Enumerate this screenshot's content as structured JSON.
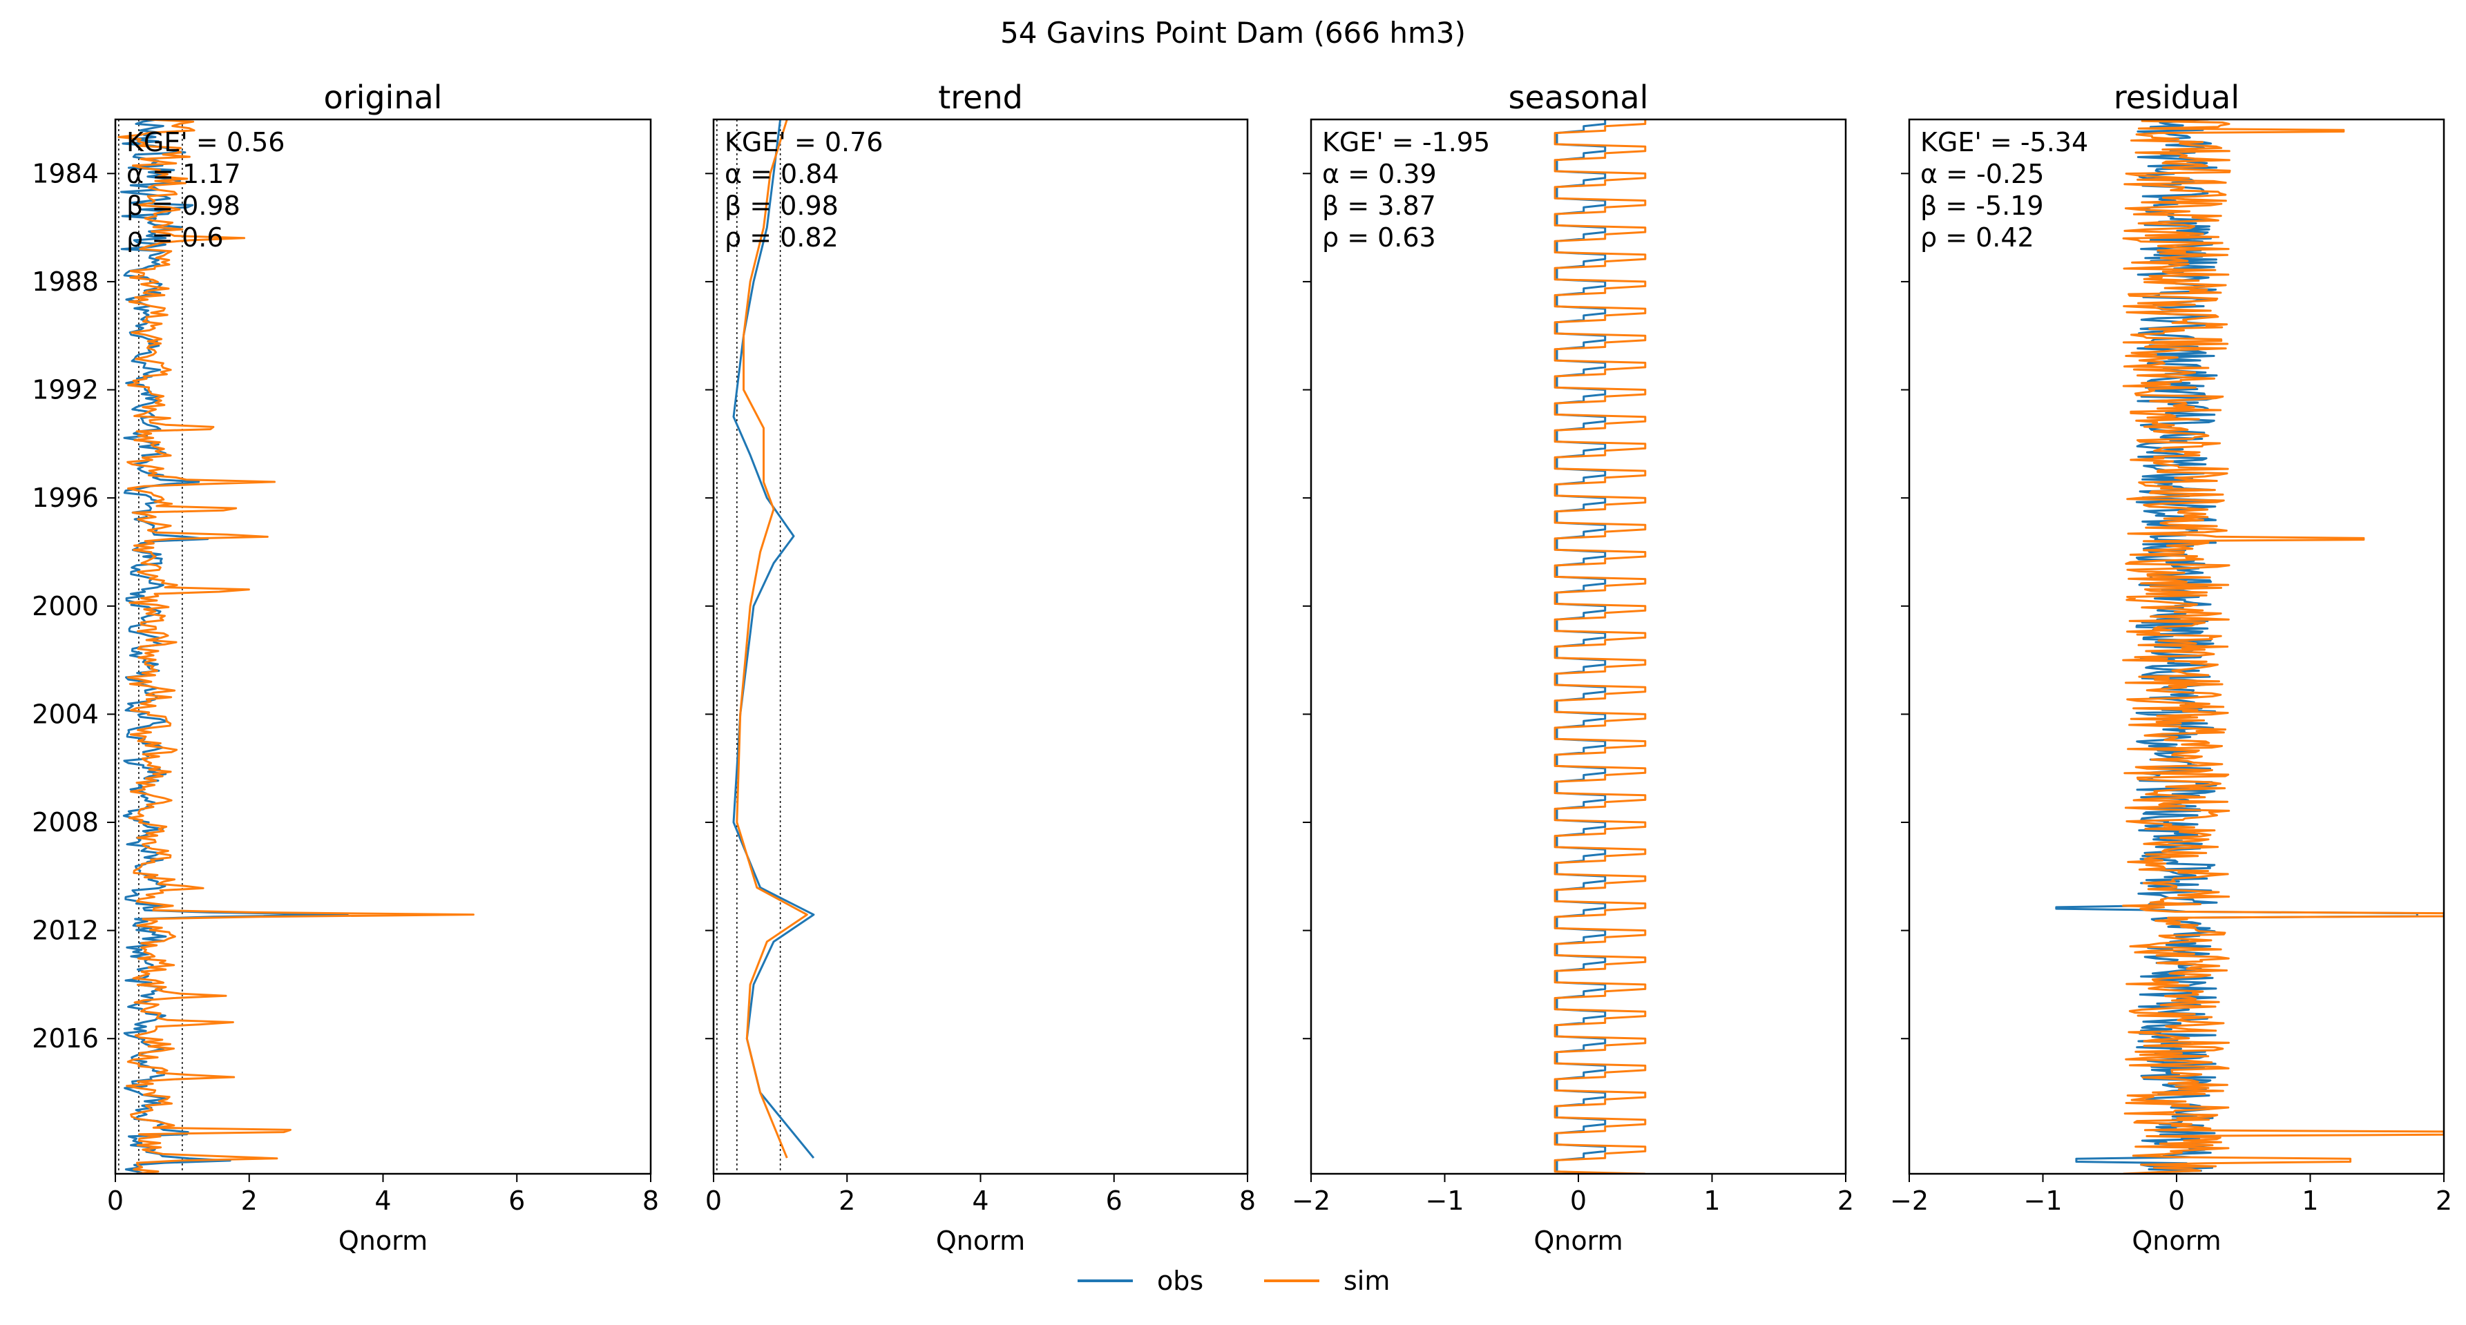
{
  "figure": {
    "suptitle": "54  Gavins Point Dam (666 hm3)",
    "legend": {
      "placement": "bottom-center",
      "entries": [
        {
          "label": "obs",
          "color": "#1f77b4"
        },
        {
          "label": "sim",
          "color": "#ff7f0e"
        }
      ]
    }
  },
  "chart_data": [
    {
      "type": "line",
      "title": "original",
      "xlabel": "Qnorm",
      "ylabel": "",
      "xlim": [
        0,
        8
      ],
      "ylim": [
        "1982-01-01",
        "2021-01-01"
      ],
      "xticks": [
        "0",
        "2",
        "4",
        "6",
        "8"
      ],
      "yticks": [
        "1984",
        "1988",
        "1992",
        "1996",
        "2000",
        "2004",
        "2008",
        "2012",
        "2016"
      ],
      "stats": [
        "KGE' = 0.56",
        "α = 1.17",
        "β = 0.98",
        "ρ = 0.6"
      ],
      "reference_lines": [
        0.05,
        0.35,
        1.0
      ],
      "series": [
        {
          "name": "obs",
          "color": "#1f77b4",
          "baseline": 0.45,
          "amplitude": 0.18,
          "points": [
            {
              "date": "1995-06-01",
              "value": 1.3
            },
            {
              "date": "1997-07-01",
              "value": 1.6
            },
            {
              "date": "2011-06-01",
              "value": 3.5
            },
            {
              "date": "2019-07-01",
              "value": 1.4
            },
            {
              "date": "2020-07-01",
              "value": 1.9
            }
          ]
        },
        {
          "name": "sim",
          "color": "#ff7f0e",
          "baseline": 0.55,
          "amplitude": 0.25,
          "points": [
            {
              "date": "1986-06-01",
              "value": 1.9
            },
            {
              "date": "1993-06-01",
              "value": 1.9
            },
            {
              "date": "1995-06-01",
              "value": 2.5
            },
            {
              "date": "1996-06-01",
              "value": 2.3
            },
            {
              "date": "1997-06-01",
              "value": 2.7
            },
            {
              "date": "1999-06-01",
              "value": 2.4
            },
            {
              "date": "2010-06-01",
              "value": 1.5
            },
            {
              "date": "2011-06-01",
              "value": 5.4
            },
            {
              "date": "2014-06-01",
              "value": 1.7
            },
            {
              "date": "2015-06-01",
              "value": 2.0
            },
            {
              "date": "2017-06-01",
              "value": 1.9
            },
            {
              "date": "2019-06-01",
              "value": 3.6
            },
            {
              "date": "2020-06-01",
              "value": 2.7
            }
          ]
        }
      ]
    },
    {
      "type": "line",
      "title": "trend",
      "xlabel": "Qnorm",
      "ylabel": "",
      "xlim": [
        0,
        8
      ],
      "ylim": [
        "1982-01-01",
        "2021-01-01"
      ],
      "xticks": [
        "0",
        "2",
        "4",
        "6",
        "8"
      ],
      "stats": [
        "KGE' = 0.76",
        "α = 0.84",
        "β = 0.98",
        "ρ = 0.82"
      ],
      "reference_lines": [
        0.05,
        0.35,
        1.0
      ],
      "series": [
        {
          "name": "obs",
          "color": "#1f77b4",
          "points": [
            {
              "date": "1982-01-01",
              "value": 1.0
            },
            {
              "date": "1984-01-01",
              "value": 0.9
            },
            {
              "date": "1986-01-01",
              "value": 0.8
            },
            {
              "date": "1988-01-01",
              "value": 0.6
            },
            {
              "date": "1990-01-01",
              "value": 0.45
            },
            {
              "date": "1992-01-01",
              "value": 0.35
            },
            {
              "date": "1993-01-01",
              "value": 0.3
            },
            {
              "date": "1994-06-01",
              "value": 0.55
            },
            {
              "date": "1996-01-01",
              "value": 0.8
            },
            {
              "date": "1997-06-01",
              "value": 1.2
            },
            {
              "date": "1998-06-01",
              "value": 0.9
            },
            {
              "date": "2000-01-01",
              "value": 0.6
            },
            {
              "date": "2004-01-01",
              "value": 0.4
            },
            {
              "date": "2008-01-01",
              "value": 0.3
            },
            {
              "date": "2010-06-01",
              "value": 0.7
            },
            {
              "date": "2011-06-01",
              "value": 1.5
            },
            {
              "date": "2012-06-01",
              "value": 0.9
            },
            {
              "date": "2014-01-01",
              "value": 0.6
            },
            {
              "date": "2016-01-01",
              "value": 0.5
            },
            {
              "date": "2018-01-01",
              "value": 0.7
            },
            {
              "date": "2020-06-01",
              "value": 1.5
            }
          ]
        },
        {
          "name": "sim",
          "color": "#ff7f0e",
          "points": [
            {
              "date": "1982-01-01",
              "value": 1.1
            },
            {
              "date": "1984-01-01",
              "value": 0.85
            },
            {
              "date": "1986-01-01",
              "value": 0.75
            },
            {
              "date": "1988-01-01",
              "value": 0.55
            },
            {
              "date": "1990-01-01",
              "value": 0.45
            },
            {
              "date": "1992-01-01",
              "value": 0.45
            },
            {
              "date": "1993-06-01",
              "value": 0.75
            },
            {
              "date": "1995-06-01",
              "value": 0.75
            },
            {
              "date": "1996-06-01",
              "value": 0.9
            },
            {
              "date": "1998-01-01",
              "value": 0.7
            },
            {
              "date": "2000-01-01",
              "value": 0.55
            },
            {
              "date": "2004-01-01",
              "value": 0.4
            },
            {
              "date": "2008-01-01",
              "value": 0.35
            },
            {
              "date": "2010-06-01",
              "value": 0.65
            },
            {
              "date": "2011-06-01",
              "value": 1.4
            },
            {
              "date": "2012-06-01",
              "value": 0.8
            },
            {
              "date": "2014-01-01",
              "value": 0.55
            },
            {
              "date": "2016-01-01",
              "value": 0.5
            },
            {
              "date": "2018-01-01",
              "value": 0.7
            },
            {
              "date": "2020-06-01",
              "value": 1.1
            }
          ]
        }
      ]
    },
    {
      "type": "line",
      "title": "seasonal",
      "xlabel": "Qnorm",
      "ylabel": "",
      "xlim": [
        -2,
        2
      ],
      "ylim": [
        "1982-01-01",
        "2021-01-01"
      ],
      "xticks": [
        "−2",
        "−1",
        "0",
        "1",
        "2"
      ],
      "stats": [
        "KGE' = -1.95",
        "α = 0.39",
        "β = 3.87",
        "ρ = 0.63"
      ],
      "series": [
        {
          "name": "obs",
          "color": "#1f77b4",
          "range": [
            -0.2,
            0.2
          ]
        },
        {
          "name": "sim",
          "color": "#ff7f0e",
          "range": [
            -0.25,
            0.5
          ]
        }
      ]
    },
    {
      "type": "line",
      "title": "residual",
      "xlabel": "Qnorm",
      "ylabel": "",
      "xlim": [
        -2,
        2
      ],
      "ylim": [
        "1982-01-01",
        "2021-01-01"
      ],
      "xticks": [
        "−2",
        "−1",
        "0",
        "1",
        "2"
      ],
      "stats": [
        "KGE' = -5.34",
        "α = -0.25",
        "β = -5.19",
        "ρ = 0.42"
      ],
      "series": [
        {
          "name": "obs",
          "color": "#1f77b4",
          "points": [
            {
              "date": "2011-06-01",
              "value": 1.8
            },
            {
              "date": "2011-03-01",
              "value": -0.9
            },
            {
              "date": "2020-07-01",
              "value": -0.75
            }
          ]
        },
        {
          "name": "sim",
          "color": "#ff7f0e",
          "points": [
            {
              "date": "1982-06-01",
              "value": 1.25
            },
            {
              "date": "1997-07-01",
              "value": 1.4
            },
            {
              "date": "2011-06-01",
              "value": 2.0
            },
            {
              "date": "2019-07-01",
              "value": 2.0
            },
            {
              "date": "2020-07-01",
              "value": 1.3
            }
          ]
        }
      ]
    }
  ]
}
